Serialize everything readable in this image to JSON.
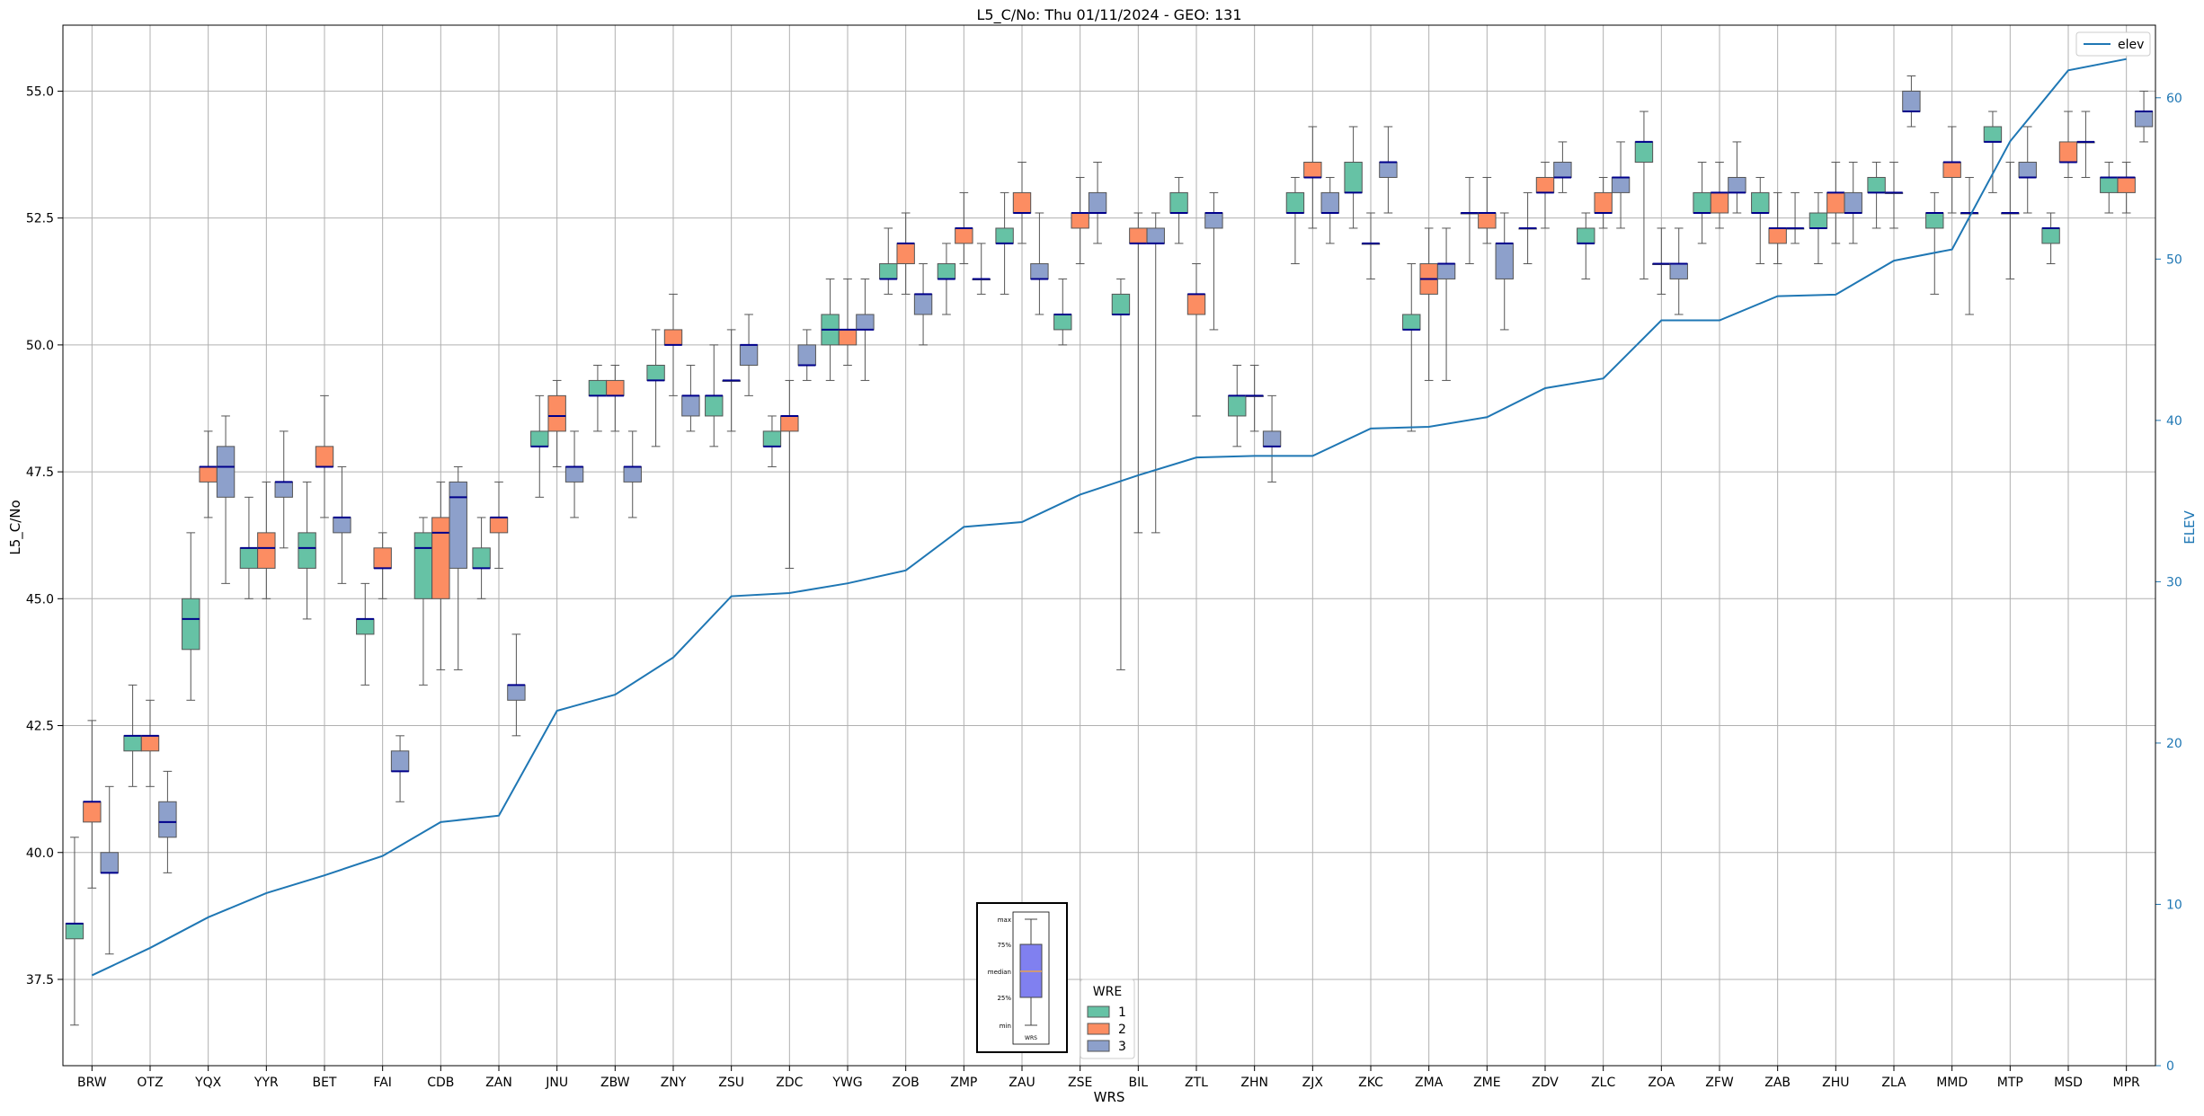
{
  "chart_data": {
    "type": "box",
    "title": "L5_C/No: Thu 01/11/2024 - GEO: 131",
    "xlabel": "WRS",
    "ylabel": "L5_C/No",
    "y2label": "ELEV",
    "ylim": [
      35.8,
      56.3
    ],
    "y2lim": [
      0,
      64.5
    ],
    "yticks": [
      37.5,
      40.0,
      42.5,
      45.0,
      47.5,
      50.0,
      52.5,
      55.0
    ],
    "y2ticks": [
      0,
      10,
      20,
      30,
      40,
      50,
      60
    ],
    "grid": true,
    "categories": [
      "BRW",
      "OTZ",
      "YQX",
      "YYR",
      "BET",
      "FAI",
      "CDB",
      "ZAN",
      "JNU",
      "ZBW",
      "ZNY",
      "ZSU",
      "ZDC",
      "YWG",
      "ZOB",
      "ZMP",
      "ZAU",
      "ZSE",
      "BIL",
      "ZTL",
      "ZHN",
      "ZJX",
      "ZKC",
      "ZMA",
      "ZME",
      "ZDV",
      "ZLC",
      "ZOA",
      "ZFW",
      "ZAB",
      "ZHU",
      "ZLA",
      "MMD",
      "MTP",
      "MSD",
      "MPR"
    ],
    "series": [
      {
        "name": "1",
        "color": "#66c2a5",
        "boxes": [
          [
            36.6,
            38.3,
            38.6,
            38.6,
            40.3
          ],
          [
            41.3,
            42.0,
            42.3,
            42.3,
            43.3
          ],
          [
            43.0,
            44.0,
            44.6,
            45.0,
            46.3
          ],
          [
            45.0,
            45.6,
            46.0,
            46.0,
            47.0
          ],
          [
            44.6,
            45.6,
            46.0,
            46.3,
            47.3
          ],
          [
            43.3,
            44.3,
            44.6,
            44.6,
            45.3
          ],
          [
            43.3,
            45.0,
            46.0,
            46.3,
            46.6
          ],
          [
            45.0,
            45.6,
            45.6,
            46.0,
            46.6
          ],
          [
            47.0,
            48.0,
            48.0,
            48.3,
            49.0
          ],
          [
            48.3,
            49.0,
            49.0,
            49.3,
            49.6
          ],
          [
            48.0,
            49.3,
            49.3,
            49.6,
            50.3
          ],
          [
            48.0,
            48.6,
            49.0,
            49.0,
            50.0
          ],
          [
            47.6,
            48.0,
            48.0,
            48.3,
            48.6
          ],
          [
            49.3,
            50.0,
            50.3,
            50.6,
            51.3
          ],
          [
            51.0,
            51.3,
            51.3,
            51.6,
            52.3
          ],
          [
            50.6,
            51.3,
            51.3,
            51.6,
            52.0
          ],
          [
            51.0,
            52.0,
            52.0,
            52.3,
            53.0
          ],
          [
            50.0,
            50.3,
            50.6,
            50.6,
            51.3
          ],
          [
            43.6,
            50.6,
            50.6,
            51.0,
            51.3
          ],
          [
            52.0,
            52.6,
            52.6,
            53.0,
            53.3
          ],
          [
            48.0,
            48.6,
            49.0,
            49.0,
            49.6
          ],
          [
            51.6,
            52.6,
            52.6,
            53.0,
            53.3
          ],
          [
            52.3,
            53.0,
            53.0,
            53.6,
            54.3
          ],
          [
            48.3,
            50.3,
            50.3,
            50.6,
            51.6
          ],
          [
            51.6,
            52.6,
            52.6,
            52.6,
            53.3
          ],
          [
            51.6,
            52.3,
            52.3,
            52.3,
            53.0
          ],
          [
            51.3,
            52.0,
            52.0,
            52.3,
            52.6
          ],
          [
            51.3,
            53.6,
            54.0,
            54.0,
            54.6
          ],
          [
            52.0,
            52.6,
            52.6,
            53.0,
            53.6
          ],
          [
            51.6,
            52.6,
            52.6,
            53.0,
            53.3
          ],
          [
            51.6,
            52.3,
            52.3,
            52.6,
            53.0
          ],
          [
            52.3,
            53.0,
            53.0,
            53.3,
            53.6
          ],
          [
            51.0,
            52.3,
            52.6,
            52.6,
            53.0
          ],
          [
            53.0,
            54.0,
            54.0,
            54.3,
            54.6
          ],
          [
            51.6,
            52.0,
            52.3,
            52.3,
            52.6
          ],
          [
            52.6,
            53.0,
            53.3,
            53.3,
            53.6
          ]
        ]
      },
      {
        "name": "2",
        "color": "#fc8d62",
        "boxes": [
          [
            39.3,
            40.6,
            41.0,
            41.0,
            42.6
          ],
          [
            41.3,
            42.0,
            42.3,
            42.3,
            43.0
          ],
          [
            46.6,
            47.3,
            47.6,
            47.6,
            48.3
          ],
          [
            45.0,
            45.6,
            46.0,
            46.3,
            47.3
          ],
          [
            46.6,
            47.6,
            47.6,
            48.0,
            49.0
          ],
          [
            45.0,
            45.6,
            45.6,
            46.0,
            46.3
          ],
          [
            43.6,
            45.0,
            46.3,
            46.6,
            47.3
          ],
          [
            45.6,
            46.3,
            46.6,
            46.6,
            47.3
          ],
          [
            47.6,
            48.3,
            48.6,
            49.0,
            49.3
          ],
          [
            48.3,
            49.0,
            49.0,
            49.3,
            49.6
          ],
          [
            49.0,
            50.0,
            50.0,
            50.3,
            51.0
          ],
          [
            48.3,
            49.3,
            49.3,
            49.3,
            50.3
          ],
          [
            45.6,
            48.3,
            48.6,
            48.6,
            49.3
          ],
          [
            49.6,
            50.0,
            50.3,
            50.3,
            51.3
          ],
          [
            51.0,
            51.6,
            52.0,
            52.0,
            52.6
          ],
          [
            51.6,
            52.0,
            52.3,
            52.3,
            53.0
          ],
          [
            52.0,
            52.6,
            52.6,
            53.0,
            53.6
          ],
          [
            51.6,
            52.3,
            52.6,
            52.6,
            53.3
          ],
          [
            46.3,
            52.0,
            52.0,
            52.3,
            52.6
          ],
          [
            48.6,
            50.6,
            51.0,
            51.0,
            51.6
          ],
          [
            48.3,
            49.0,
            49.0,
            49.0,
            49.6
          ],
          [
            52.3,
            53.3,
            53.3,
            53.6,
            54.3
          ],
          [
            51.3,
            52.0,
            52.0,
            52.0,
            52.6
          ],
          [
            49.3,
            51.0,
            51.3,
            51.6,
            52.3
          ],
          [
            52.0,
            52.3,
            52.6,
            52.6,
            53.3
          ],
          [
            52.3,
            53.0,
            53.0,
            53.3,
            53.6
          ],
          [
            52.3,
            52.6,
            52.6,
            53.0,
            53.3
          ],
          [
            51.0,
            51.6,
            51.6,
            51.6,
            52.3
          ],
          [
            52.3,
            52.6,
            53.0,
            53.0,
            53.6
          ],
          [
            51.6,
            52.0,
            52.3,
            52.3,
            53.0
          ],
          [
            52.0,
            52.6,
            53.0,
            53.0,
            53.6
          ],
          [
            52.3,
            53.0,
            53.0,
            53.0,
            53.6
          ],
          [
            52.6,
            53.3,
            53.6,
            53.6,
            54.3
          ],
          [
            51.3,
            52.6,
            52.6,
            52.6,
            53.6
          ],
          [
            53.3,
            53.6,
            53.6,
            54.0,
            54.6
          ],
          [
            52.6,
            53.0,
            53.3,
            53.3,
            53.6
          ]
        ]
      },
      {
        "name": "3",
        "color": "#8da0cb",
        "boxes": [
          [
            38.0,
            39.6,
            39.6,
            40.0,
            41.3
          ],
          [
            39.6,
            40.3,
            40.6,
            41.0,
            41.6
          ],
          [
            45.3,
            47.0,
            47.6,
            48.0,
            48.6
          ],
          [
            46.0,
            47.0,
            47.3,
            47.3,
            48.3
          ],
          [
            45.3,
            46.3,
            46.6,
            46.6,
            47.6
          ],
          [
            41.0,
            41.6,
            41.6,
            42.0,
            42.3
          ],
          [
            43.6,
            45.6,
            47.0,
            47.3,
            47.6
          ],
          [
            42.3,
            43.0,
            43.3,
            43.3,
            44.3
          ],
          [
            46.6,
            47.3,
            47.6,
            47.6,
            48.3
          ],
          [
            46.6,
            47.3,
            47.6,
            47.6,
            48.3
          ],
          [
            48.3,
            48.6,
            49.0,
            49.0,
            49.6
          ],
          [
            49.0,
            49.6,
            50.0,
            50.0,
            50.6
          ],
          [
            49.3,
            49.6,
            49.6,
            50.0,
            50.3
          ],
          [
            49.3,
            50.3,
            50.3,
            50.6,
            51.3
          ],
          [
            50.0,
            50.6,
            51.0,
            51.0,
            51.6
          ],
          [
            51.0,
            51.3,
            51.3,
            51.3,
            52.0
          ],
          [
            50.6,
            51.3,
            51.3,
            51.6,
            52.6
          ],
          [
            52.0,
            52.6,
            52.6,
            53.0,
            53.6
          ],
          [
            46.3,
            52.0,
            52.0,
            52.3,
            52.6
          ],
          [
            50.3,
            52.3,
            52.6,
            52.6,
            53.0
          ],
          [
            47.3,
            48.0,
            48.0,
            48.3,
            49.0
          ],
          [
            52.0,
            52.6,
            52.6,
            53.0,
            53.3
          ],
          [
            52.6,
            53.3,
            53.6,
            53.6,
            54.3
          ],
          [
            49.3,
            51.3,
            51.6,
            51.6,
            52.3
          ],
          [
            50.3,
            51.3,
            52.0,
            52.0,
            52.6
          ],
          [
            53.0,
            53.3,
            53.3,
            53.6,
            54.0
          ],
          [
            52.3,
            53.0,
            53.3,
            53.3,
            54.0
          ],
          [
            50.6,
            51.3,
            51.6,
            51.6,
            52.3
          ],
          [
            52.6,
            53.0,
            53.0,
            53.3,
            54.0
          ],
          [
            52.0,
            52.3,
            52.3,
            52.3,
            53.0
          ],
          [
            52.0,
            52.6,
            52.6,
            53.0,
            53.6
          ],
          [
            54.3,
            54.6,
            54.6,
            55.0,
            55.3
          ],
          [
            50.6,
            52.6,
            52.6,
            52.6,
            53.3
          ],
          [
            52.6,
            53.3,
            53.3,
            53.6,
            54.3
          ],
          [
            53.3,
            54.0,
            54.0,
            54.0,
            54.6
          ],
          [
            54.0,
            54.3,
            54.6,
            54.6,
            55.0
          ]
        ]
      }
    ],
    "line": {
      "name": "elev",
      "color": "#1f77b4",
      "axis": "right",
      "values": [
        5.6,
        7.3,
        9.2,
        10.7,
        11.8,
        13.0,
        15.1,
        15.5,
        22.0,
        23.0,
        25.3,
        29.1,
        29.3,
        29.9,
        30.7,
        33.4,
        33.7,
        35.4,
        36.6,
        37.7,
        37.8,
        37.8,
        39.5,
        39.6,
        40.2,
        42.0,
        42.6,
        46.2,
        46.2,
        47.7,
        47.8,
        49.9,
        50.6,
        57.3,
        61.7,
        62.4
      ]
    },
    "legend_line": {
      "label": "elev",
      "position": "top-right"
    },
    "legend_boxes": {
      "title": "WRE",
      "labels": [
        "1",
        "2",
        "3"
      ],
      "position": "bottom-center"
    },
    "inset_key": {
      "labels": [
        "max",
        "75%",
        "median",
        "25%",
        "min"
      ],
      "category": "WRS"
    }
  }
}
